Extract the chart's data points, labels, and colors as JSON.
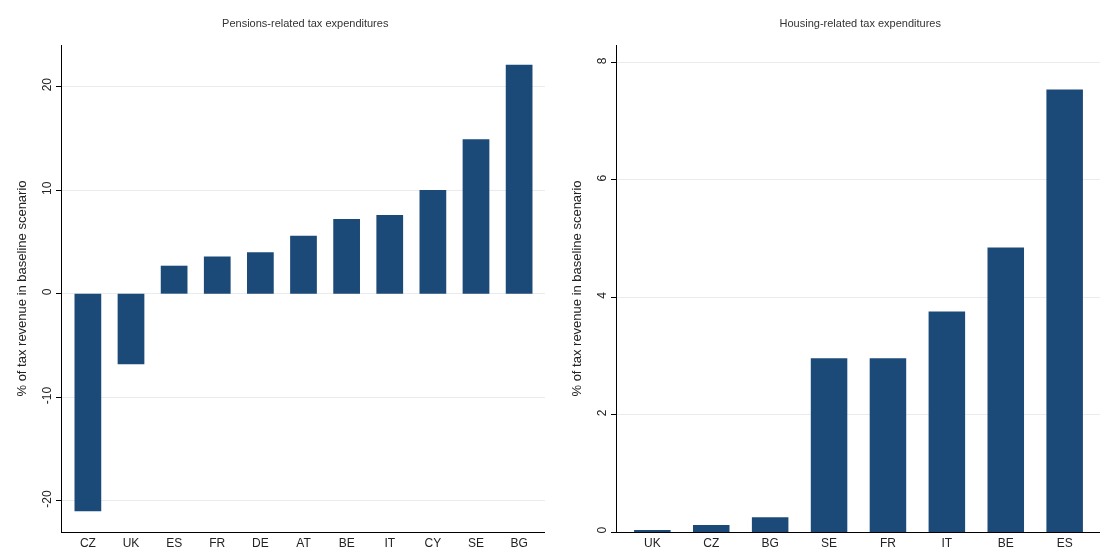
{
  "chart_data": [
    {
      "type": "bar",
      "title": "Pensions-related tax expenditures",
      "ylabel": "% of tax revenue in baseline scenario",
      "categories": [
        "CZ",
        "UK",
        "ES",
        "FR",
        "DE",
        "AT",
        "BE",
        "IT",
        "CY",
        "SE",
        "BG"
      ],
      "values": [
        -21.0,
        -6.8,
        2.7,
        3.6,
        4.0,
        5.6,
        7.2,
        7.6,
        10.0,
        14.9,
        22.1
      ],
      "color": "#1c4a78",
      "ylim": [
        -23,
        24
      ],
      "yticks": [
        -20,
        -10,
        0,
        10,
        20
      ],
      "grid": "y"
    },
    {
      "type": "bar",
      "title": "Housing-related tax expenditures",
      "ylabel": "% of tax revenue in baseline scenario",
      "categories": [
        "UK",
        "CZ",
        "BG",
        "SE",
        "FR",
        "IT",
        "BE",
        "ES"
      ],
      "values": [
        0.03,
        0.12,
        0.25,
        2.96,
        2.96,
        3.76,
        4.85,
        7.54
      ],
      "color": "#1c4a78",
      "ylim": [
        0,
        8.3
      ],
      "yticks": [
        0,
        2,
        4,
        6,
        8
      ],
      "grid": "y"
    }
  ]
}
